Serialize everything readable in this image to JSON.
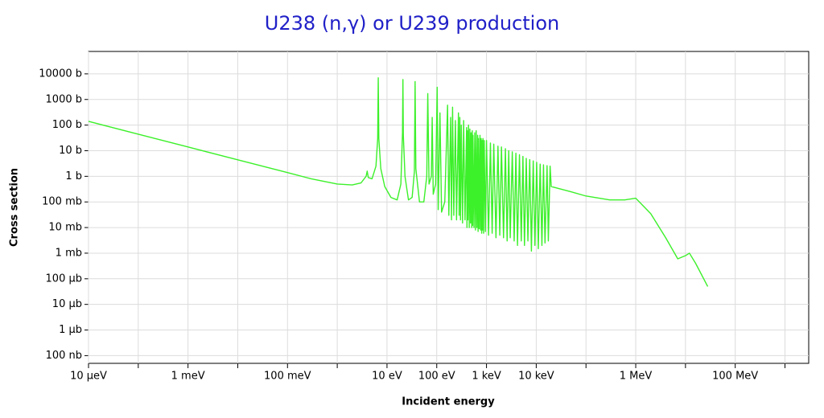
{
  "chart_data": {
    "type": "line",
    "title": "U238 (n,γ) or U239 production",
    "xlabel": "Incident energy",
    "ylabel": "Cross section",
    "xscale": "log",
    "yscale": "log",
    "grid": true,
    "color": "#3cf02a",
    "title_color": "#2020c8",
    "xlim": [
      1e-05,
      3000000000.0
    ],
    "ylim": [
      5e-08,
      75000.0
    ],
    "xticks": [
      {
        "value": 1e-05,
        "label": "10 µeV"
      },
      {
        "value": 0.001,
        "label": "1 meV"
      },
      {
        "value": 0.1,
        "label": "100 meV"
      },
      {
        "value": 10,
        "label": "10 eV"
      },
      {
        "value": 100,
        "label": "100 eV"
      },
      {
        "value": 1000,
        "label": "1 keV"
      },
      {
        "value": 10000,
        "label": "10 keV"
      },
      {
        "value": 1000000,
        "label": "1 MeV"
      },
      {
        "value": 100000000,
        "label": "100 MeV"
      }
    ],
    "xminorticks": [
      0.0001,
      0.01,
      1,
      100000,
      10000000,
      1000000000
    ],
    "yticks": [
      {
        "value": 10000,
        "label": "10000 b"
      },
      {
        "value": 1000,
        "label": "1000 b"
      },
      {
        "value": 100,
        "label": "100 b"
      },
      {
        "value": 10,
        "label": "10 b"
      },
      {
        "value": 1,
        "label": "1 b"
      },
      {
        "value": 0.1,
        "label": "100 mb"
      },
      {
        "value": 0.01,
        "label": "10 mb"
      },
      {
        "value": 0.001,
        "label": "1 mb"
      },
      {
        "value": 0.0001,
        "label": "100 µb"
      },
      {
        "value": 1e-05,
        "label": "10 µb"
      },
      {
        "value": 1e-06,
        "label": "1 µb"
      },
      {
        "value": 1e-07,
        "label": "100 nb"
      }
    ],
    "x": [
      1e-05,
      0.0001,
      0.001,
      0.01,
      0.1,
      0.3,
      1,
      2,
      3,
      3.8,
      4.0,
      4.2,
      5,
      6,
      6.5,
      6.67,
      6.85,
      7.5,
      9,
      12,
      16,
      19,
      20.5,
      20.9,
      21.3,
      23,
      27,
      32,
      35.5,
      36.7,
      38,
      45,
      55,
      63,
      66,
      70,
      78,
      81,
      85,
      95,
      102,
      107,
      116,
      125,
      145,
      165,
      175,
      190,
      198,
      208,
      220,
      237,
      250,
      273,
      282,
      291,
      300,
      311,
      330,
      347,
      370,
      398,
      405,
      411,
      422,
      435,
      450,
      463,
      478,
      490,
      505,
      518,
      526,
      535,
      560,
      580,
      600,
      620,
      640,
      665,
      678,
      690,
      715,
      740,
      760,
      780,
      800,
      820,
      835,
      850,
      875,
      900,
      950,
      1000,
      1100,
      1200,
      1300,
      1400,
      1550,
      1700,
      1850,
      2000,
      2200,
      2400,
      2600,
      2800,
      3000,
      3300,
      3600,
      3900,
      4200,
      4600,
      5000,
      5400,
      5800,
      6300,
      6800,
      7400,
      8000,
      8700,
      9400,
      10200,
      11000,
      12000,
      13000,
      14000,
      15000,
      16500,
      17500,
      19000,
      20000,
      50000,
      100000,
      300000,
      600000,
      1000000,
      2000000,
      4000000,
      7000000,
      10000000,
      12000000,
      16000000,
      28000000
    ],
    "values": [
      140,
      44,
      14,
      4.4,
      1.4,
      0.8,
      0.5,
      0.46,
      0.55,
      1.0,
      1.6,
      0.9,
      0.8,
      2.5,
      30,
      7000,
      30,
      2,
      0.4,
      0.15,
      0.12,
      0.5,
      50,
      6000,
      40,
      1,
      0.12,
      0.15,
      1.5,
      5000,
      2,
      0.1,
      0.1,
      1,
      1700,
      0.5,
      1,
      200,
      0.2,
      0.5,
      3000,
      0.05,
      300,
      0.04,
      0.1,
      600,
      0.03,
      200,
      0.02,
      500,
      0.03,
      150,
      0.02,
      300,
      0.03,
      200,
      0.02,
      100,
      0.015,
      150,
      0.02,
      80,
      0.01,
      60,
      0.02,
      100,
      0.01,
      70,
      0.015,
      50,
      0.01,
      60,
      0.012,
      40,
      0.01,
      50,
      0.008,
      60,
      0.01,
      40,
      0.007,
      30,
      0.009,
      40,
      0.008,
      30,
      0.006,
      25,
      0.008,
      30,
      0.006,
      25,
      0.007,
      25,
      0.005,
      20,
      0.006,
      18,
      0.004,
      15,
      0.005,
      14,
      0.004,
      12,
      0.003,
      10,
      0.004,
      9,
      0.003,
      8,
      0.002,
      7,
      0.003,
      6,
      0.002,
      5,
      0.003,
      4.5,
      0.0012,
      4,
      0.002,
      3.5,
      0.0015,
      3,
      0.002,
      2.8,
      0.0025,
      2.6,
      0.003,
      2.5,
      0.4,
      0.25,
      0.17,
      0.12,
      0.12,
      0.14,
      0.035,
      0.004,
      0.0006,
      0.0008,
      0.001,
      0.0004,
      5e-05
    ]
  }
}
